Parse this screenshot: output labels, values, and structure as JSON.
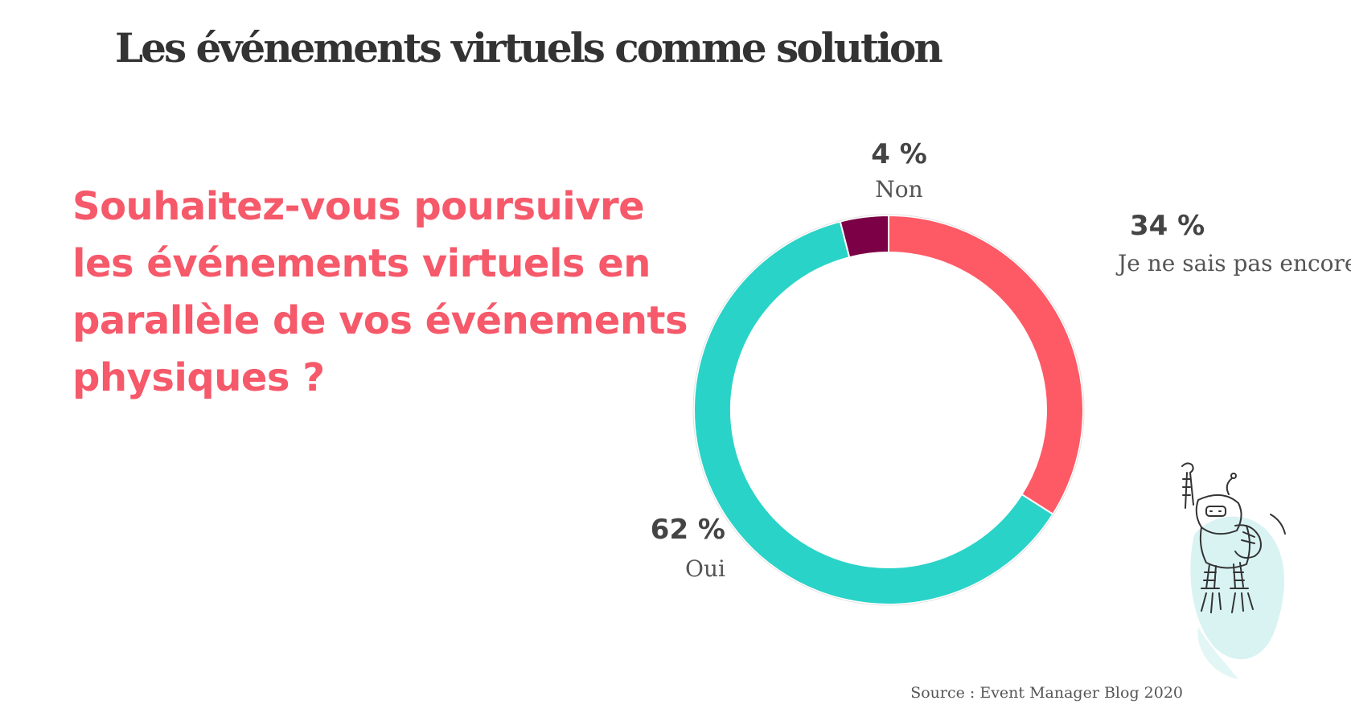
{
  "header": {
    "title": "Les événements virtuels comme solution"
  },
  "question": {
    "lines": [
      "Souhaitez-vous poursuivre",
      "les événements virtuels en",
      "parallèle de vos événements",
      "physiques ?"
    ]
  },
  "chart_data": {
    "type": "pie",
    "variant": "donut",
    "start": "top, clockwise",
    "slices": [
      {
        "label": "Je ne sais pas encore",
        "value": 34,
        "value_label": "34 %",
        "color": "#fe5a66"
      },
      {
        "label": "Oui",
        "value": 62,
        "value_label": "62 %",
        "color": "#2ad3c8"
      },
      {
        "label": "Non",
        "value": 4,
        "value_label": "4 %",
        "color": "#7b0046"
      }
    ]
  },
  "footer": {
    "source": "Source : Event Manager Blog 2020"
  },
  "mascot": {
    "icon": "jetpack-robot-icon"
  }
}
